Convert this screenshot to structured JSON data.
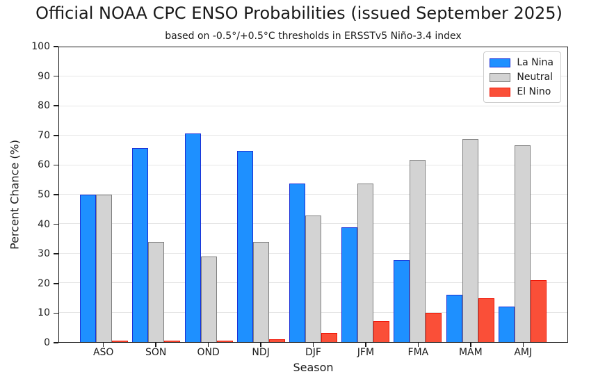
{
  "chart_data": {
    "type": "bar",
    "title": "Official NOAA CPC ENSO Probabilities (issued September 2025)",
    "subtitle": "based on -0.5°/+0.5°C thresholds in ERSSTv5 Niño-3.4 index",
    "categories": [
      "ASO",
      "SON",
      "OND",
      "NDJ",
      "DJF",
      "JFM",
      "FMA",
      "MAM",
      "AMJ"
    ],
    "series": [
      {
        "name": "La Nina",
        "fill": "#1E90FF",
        "edge": "#1B2FD6",
        "values": [
          50,
          66,
          71,
          65,
          54,
          39,
          28,
          16,
          12
        ]
      },
      {
        "name": "Neutral",
        "fill": "#D3D3D3",
        "edge": "#808080",
        "values": [
          50,
          34,
          29,
          34,
          43,
          54,
          62,
          69,
          67
        ]
      },
      {
        "name": "El Nino",
        "fill": "#FA4F38",
        "edge": "#F01505",
        "values": [
          0,
          0,
          0,
          1,
          3,
          7,
          10,
          15,
          21
        ]
      }
    ],
    "xlabel": "Season",
    "ylabel": "Percent Chance (%)",
    "ylim": [
      0,
      100
    ],
    "ytick_step": 10,
    "grid": true,
    "legend_position": "upper right",
    "colors": {
      "background": "#FFFFFF",
      "text": "#1A1A1A",
      "spine": "#1A1A1A",
      "gridline": "#E6E6E6",
      "legend_border": "#CCCCCC"
    }
  }
}
